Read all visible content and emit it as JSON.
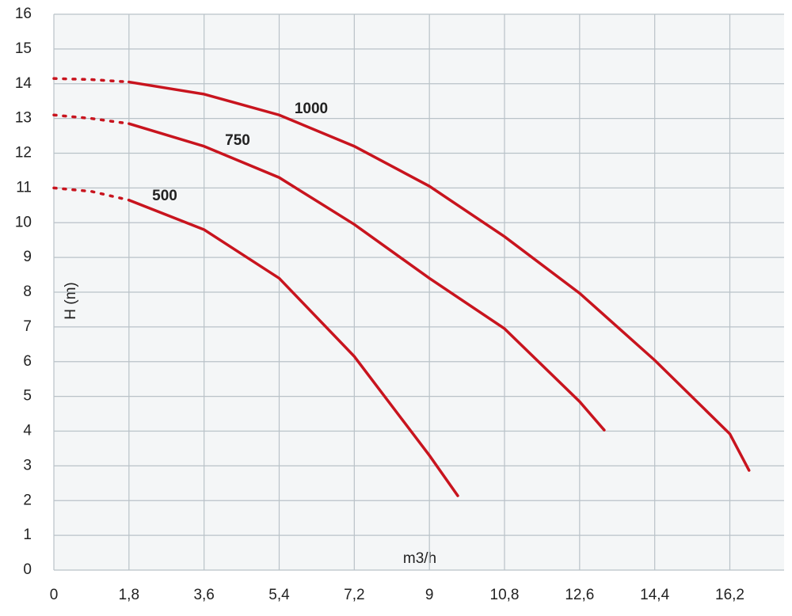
{
  "chart_data": {
    "type": "line",
    "x_label": "m3/h",
    "y_label": "H (m)",
    "xlim": [
      0,
      17.5
    ],
    "ylim": [
      0,
      16
    ],
    "xticks": [
      0,
      {
        "value": 1.8,
        "label": "1,8"
      },
      {
        "value": 3.6,
        "label": "3,6"
      },
      {
        "value": 5.4,
        "label": "5,4"
      },
      {
        "value": 7.2,
        "label": "7,2"
      },
      9,
      {
        "value": 10.8,
        "label": "10,8"
      },
      {
        "value": 12.6,
        "label": "12,6"
      },
      {
        "value": 14.4,
        "label": "14,4"
      },
      {
        "value": 16.2,
        "label": "16,2"
      }
    ],
    "yticks": [
      0,
      1,
      2,
      3,
      4,
      5,
      6,
      7,
      8,
      9,
      10,
      11,
      12,
      13,
      14,
      15,
      16
    ],
    "grid": true,
    "dotted_until_x": 1.8,
    "series": [
      {
        "name": "500",
        "color": "#c8141e",
        "x": [
          0,
          0.9,
          1.8,
          3.6,
          5.4,
          7.2,
          9,
          9.68
        ],
        "values": [
          11.0,
          10.9,
          10.65,
          9.8,
          8.4,
          6.15,
          3.3,
          2.14
        ]
      },
      {
        "name": "750",
        "color": "#c8141e",
        "x": [
          0,
          0.9,
          1.8,
          3.6,
          5.4,
          7.2,
          9,
          10.8,
          12.6,
          13.19
        ],
        "values": [
          13.1,
          13.0,
          12.85,
          12.2,
          11.3,
          9.95,
          8.4,
          6.95,
          4.85,
          4.03
        ]
      },
      {
        "name": "1000",
        "color": "#c8141e",
        "x": [
          0,
          0.9,
          1.8,
          3.6,
          5.4,
          7.2,
          9,
          10.8,
          12.6,
          14.4,
          16.2,
          16.66
        ],
        "values": [
          14.15,
          14.12,
          14.05,
          13.7,
          13.1,
          12.2,
          11.05,
          9.6,
          7.97,
          6.04,
          3.92,
          2.87
        ]
      }
    ]
  }
}
